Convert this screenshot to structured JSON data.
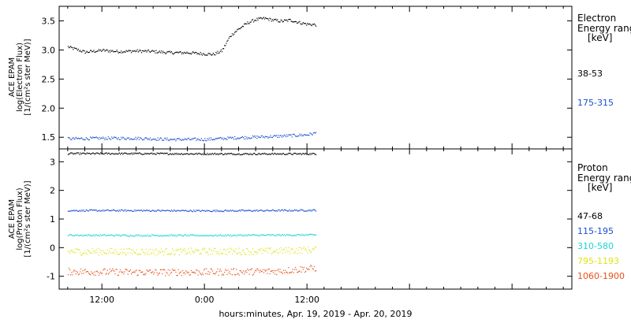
{
  "xlabel": "hours:minutes, Apr. 19, 2019 - Apr. 20, 2019",
  "x_ticks": [
    "12:00",
    "0:00",
    "12:00"
  ],
  "chart_data": [
    {
      "type": "scatter",
      "panel": "electron",
      "ylabel_lines": [
        "ACE EPAM",
        "log(Electron Flux)",
        "[1/(cm²s ster MeV)]"
      ],
      "ylim": [
        1.3,
        3.75
      ],
      "yticks": [
        "1.5",
        "2.0",
        "2.5",
        "3.0",
        "3.5"
      ],
      "legend_title": [
        "Electron",
        "Energy ranges",
        "[keV]"
      ],
      "x_range_hours": [
        -17,
        43
      ],
      "x_units": "hours from 0:00 Apr. 20, 2019",
      "series": [
        {
          "name": "38-53",
          "color": "#000000",
          "x": [
            -16,
            -14,
            -12,
            -10,
            -8,
            -6,
            -4,
            -2,
            0,
            1,
            2,
            2.5,
            3,
            4,
            5,
            6,
            7,
            8,
            9,
            10,
            11,
            12,
            13
          ],
          "y": [
            3.06,
            2.97,
            3.0,
            2.98,
            2.99,
            2.98,
            2.96,
            2.96,
            2.94,
            2.93,
            2.99,
            3.12,
            3.25,
            3.37,
            3.47,
            3.53,
            3.55,
            3.52,
            3.5,
            3.52,
            3.48,
            3.45,
            3.44
          ]
        },
        {
          "name": "175-315",
          "color": "#1a4fd0",
          "x": [
            -16,
            -12,
            -8,
            -4,
            0,
            4,
            8,
            12,
            13
          ],
          "y": [
            1.48,
            1.49,
            1.49,
            1.47,
            1.47,
            1.5,
            1.52,
            1.55,
            1.58
          ]
        }
      ]
    },
    {
      "type": "scatter",
      "panel": "proton",
      "ylabel_lines": [
        "ACE EPAM",
        "log(Proton Flux)",
        "[1/(cm²s ster MeV)]"
      ],
      "ylim": [
        -1.45,
        3.45
      ],
      "yticks": [
        "-1",
        "0",
        "1",
        "2",
        "3"
      ],
      "legend_title": [
        "Proton",
        "Energy ranges",
        "[keV]"
      ],
      "x_range_hours": [
        -17,
        43
      ],
      "series": [
        {
          "name": "47-68",
          "color": "#000000",
          "x": [
            -16,
            -8,
            0,
            8,
            13
          ],
          "y": [
            3.3,
            3.3,
            3.29,
            3.29,
            3.29
          ]
        },
        {
          "name": "115-195",
          "color": "#1a4fd0",
          "x": [
            -16,
            -8,
            0,
            8,
            13
          ],
          "y": [
            1.31,
            1.31,
            1.3,
            1.31,
            1.32
          ]
        },
        {
          "name": "310-580",
          "color": "#22d3d3",
          "x": [
            -16,
            -8,
            0,
            8,
            13
          ],
          "y": [
            0.45,
            0.44,
            0.44,
            0.45,
            0.46
          ]
        },
        {
          "name": "795-1193",
          "color": "#e2e21a",
          "x": [
            -16,
            -8,
            0,
            8,
            13
          ],
          "y": [
            -0.12,
            -0.13,
            -0.12,
            -0.11,
            -0.05
          ]
        },
        {
          "name": "1060-1900",
          "color": "#e8501a",
          "x": [
            -16,
            -8,
            0,
            8,
            13
          ],
          "y": [
            -0.82,
            -0.85,
            -0.84,
            -0.82,
            -0.7
          ]
        }
      ]
    }
  ]
}
